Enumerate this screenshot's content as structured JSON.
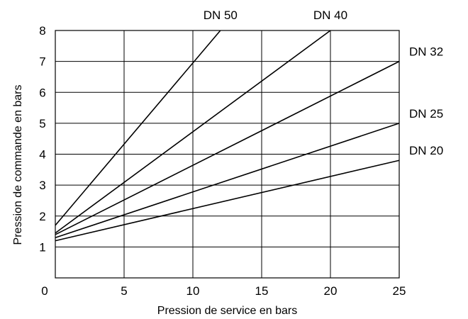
{
  "chart_data": {
    "type": "line",
    "title": "",
    "xlabel": "Pression de service en bars",
    "ylabel": "Pression de commande en bars",
    "xlim": [
      0,
      25
    ],
    "ylim": [
      0,
      8
    ],
    "x_ticks": [
      "0",
      "5",
      "10",
      "15",
      "20",
      "25"
    ],
    "y_ticks": [
      "1",
      "2",
      "3",
      "4",
      "5",
      "6",
      "7",
      "8"
    ],
    "grid": true,
    "series": [
      {
        "name": "DN 50",
        "x": [
          0,
          12.0
        ],
        "y": [
          1.7,
          8.0
        ]
      },
      {
        "name": "DN 40",
        "x": [
          0,
          20.0
        ],
        "y": [
          1.45,
          8.0
        ]
      },
      {
        "name": "DN 32",
        "x": [
          0,
          25.0
        ],
        "y": [
          1.4,
          7.0
        ]
      },
      {
        "name": "DN 25",
        "x": [
          0,
          25.0
        ],
        "y": [
          1.3,
          5.0
        ]
      },
      {
        "name": "DN 20",
        "x": [
          0,
          25.0
        ],
        "y": [
          1.2,
          3.8
        ]
      }
    ]
  }
}
